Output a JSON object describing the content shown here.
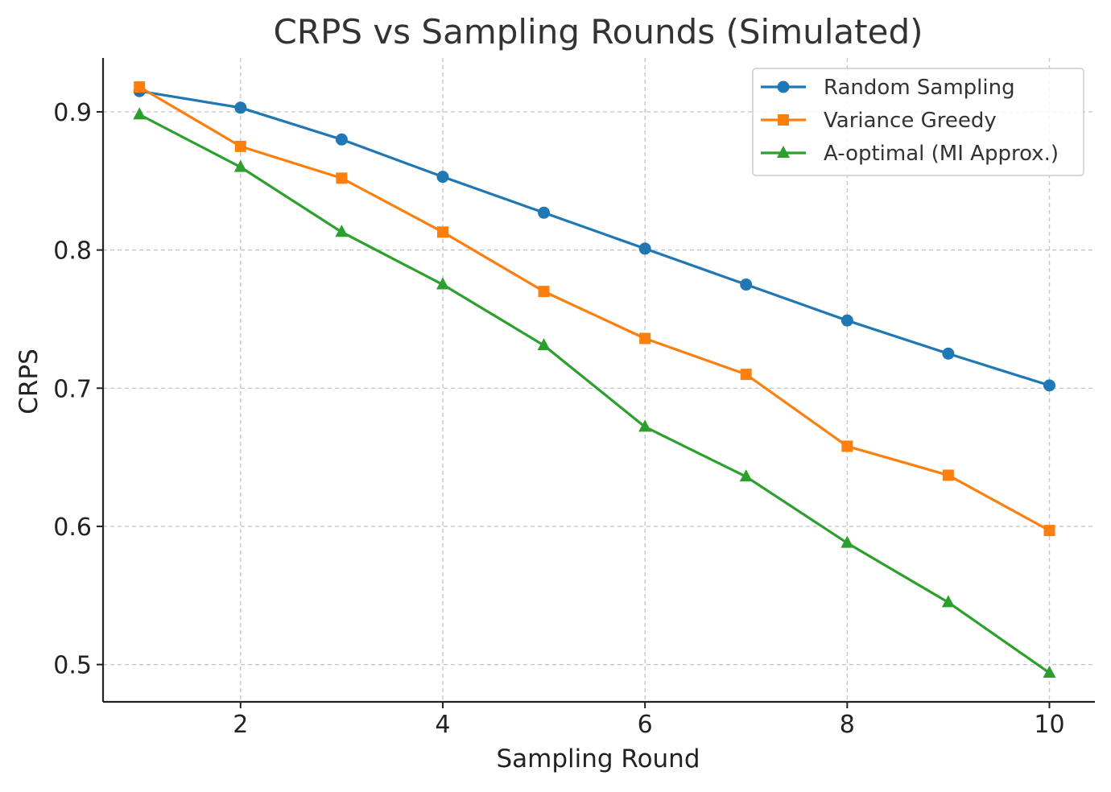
{
  "chart_data": {
    "type": "line",
    "title": "CRPS vs Sampling Rounds (Simulated)",
    "xlabel": "Sampling Round",
    "ylabel": "CRPS",
    "x": [
      1,
      2,
      3,
      4,
      5,
      6,
      7,
      8,
      9,
      10
    ],
    "xlim": [
      0.64,
      10.45
    ],
    "ylim": [
      0.473,
      0.939
    ],
    "xticks": [
      2,
      4,
      6,
      8,
      10
    ],
    "xtick_labels": [
      "2",
      "4",
      "6",
      "8",
      "10"
    ],
    "yticks": [
      0.5,
      0.6,
      0.7,
      0.8,
      0.9
    ],
    "ytick_labels": [
      "0.5",
      "0.6",
      "0.7",
      "0.8",
      "0.9"
    ],
    "grid": true,
    "legend_position": "top-right",
    "series": [
      {
        "name": "Random Sampling",
        "color": "#1f77b4",
        "marker": "circle",
        "values": [
          0.915,
          0.903,
          0.88,
          0.853,
          0.827,
          0.801,
          0.775,
          0.749,
          0.725,
          0.702
        ]
      },
      {
        "name": "Variance Greedy",
        "color": "#ff7f0e",
        "marker": "square",
        "values": [
          0.918,
          0.875,
          0.852,
          0.813,
          0.77,
          0.736,
          0.71,
          0.658,
          0.637,
          0.597
        ]
      },
      {
        "name": "A-optimal (MI Approx.)",
        "color": "#2ca02c",
        "marker": "triangle",
        "values": [
          0.898,
          0.86,
          0.813,
          0.775,
          0.731,
          0.672,
          0.636,
          0.588,
          0.545,
          0.494
        ]
      }
    ]
  }
}
